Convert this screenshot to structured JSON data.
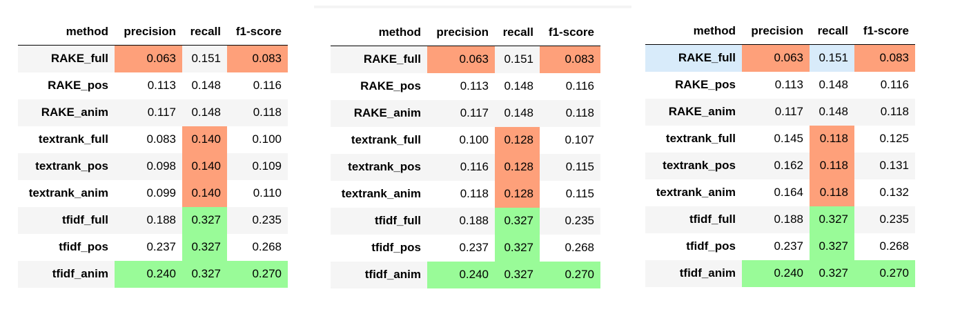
{
  "headers": {
    "method": "method",
    "precision": "precision",
    "recall": "recall",
    "f1": "f1-score"
  },
  "colors": {
    "min_highlight": "#fea07a",
    "max_highlight": "#99fb98",
    "row_selected": "#d8ebfa"
  },
  "tables": [
    {
      "rows": [
        {
          "method": "RAKE_full",
          "precision": "0.063",
          "recall": "0.151",
          "f1": "0.083",
          "hl": {
            "precision": "min",
            "recall": "",
            "f1": "min"
          },
          "selected": false
        },
        {
          "method": "RAKE_pos",
          "precision": "0.113",
          "recall": "0.148",
          "f1": "0.116",
          "hl": {
            "precision": "",
            "recall": "",
            "f1": ""
          },
          "selected": false
        },
        {
          "method": "RAKE_anim",
          "precision": "0.117",
          "recall": "0.148",
          "f1": "0.118",
          "hl": {
            "precision": "",
            "recall": "",
            "f1": ""
          },
          "selected": false
        },
        {
          "method": "textrank_full",
          "precision": "0.083",
          "recall": "0.140",
          "f1": "0.100",
          "hl": {
            "precision": "",
            "recall": "min",
            "f1": ""
          },
          "selected": false
        },
        {
          "method": "textrank_pos",
          "precision": "0.098",
          "recall": "0.140",
          "f1": "0.109",
          "hl": {
            "precision": "",
            "recall": "min",
            "f1": ""
          },
          "selected": false
        },
        {
          "method": "textrank_anim",
          "precision": "0.099",
          "recall": "0.140",
          "f1": "0.110",
          "hl": {
            "precision": "",
            "recall": "min",
            "f1": ""
          },
          "selected": false
        },
        {
          "method": "tfidf_full",
          "precision": "0.188",
          "recall": "0.327",
          "f1": "0.235",
          "hl": {
            "precision": "",
            "recall": "max",
            "f1": ""
          },
          "selected": false
        },
        {
          "method": "tfidf_pos",
          "precision": "0.237",
          "recall": "0.327",
          "f1": "0.268",
          "hl": {
            "precision": "",
            "recall": "max",
            "f1": ""
          },
          "selected": false
        },
        {
          "method": "tfidf_anim",
          "precision": "0.240",
          "recall": "0.327",
          "f1": "0.270",
          "hl": {
            "precision": "max",
            "recall": "max",
            "f1": "max"
          },
          "selected": false
        }
      ]
    },
    {
      "rows": [
        {
          "method": "RAKE_full",
          "precision": "0.063",
          "recall": "0.151",
          "f1": "0.083",
          "hl": {
            "precision": "min",
            "recall": "",
            "f1": "min"
          },
          "selected": false
        },
        {
          "method": "RAKE_pos",
          "precision": "0.113",
          "recall": "0.148",
          "f1": "0.116",
          "hl": {
            "precision": "",
            "recall": "",
            "f1": ""
          },
          "selected": false
        },
        {
          "method": "RAKE_anim",
          "precision": "0.117",
          "recall": "0.148",
          "f1": "0.118",
          "hl": {
            "precision": "",
            "recall": "",
            "f1": ""
          },
          "selected": false
        },
        {
          "method": "textrank_full",
          "precision": "0.100",
          "recall": "0.128",
          "f1": "0.107",
          "hl": {
            "precision": "",
            "recall": "min",
            "f1": ""
          },
          "selected": false
        },
        {
          "method": "textrank_pos",
          "precision": "0.116",
          "recall": "0.128",
          "f1": "0.115",
          "hl": {
            "precision": "",
            "recall": "min",
            "f1": ""
          },
          "selected": false
        },
        {
          "method": "textrank_anim",
          "precision": "0.118",
          "recall": "0.128",
          "f1": "0.115",
          "hl": {
            "precision": "",
            "recall": "min",
            "f1": ""
          },
          "selected": false
        },
        {
          "method": "tfidf_full",
          "precision": "0.188",
          "recall": "0.327",
          "f1": "0.235",
          "hl": {
            "precision": "",
            "recall": "max",
            "f1": ""
          },
          "selected": false
        },
        {
          "method": "tfidf_pos",
          "precision": "0.237",
          "recall": "0.327",
          "f1": "0.268",
          "hl": {
            "precision": "",
            "recall": "max",
            "f1": ""
          },
          "selected": false
        },
        {
          "method": "tfidf_anim",
          "precision": "0.240",
          "recall": "0.327",
          "f1": "0.270",
          "hl": {
            "precision": "max",
            "recall": "max",
            "f1": "max"
          },
          "selected": false
        }
      ]
    },
    {
      "rows": [
        {
          "method": "RAKE_full",
          "precision": "0.063",
          "recall": "0.151",
          "f1": "0.083",
          "hl": {
            "precision": "min",
            "recall": "",
            "f1": "min"
          },
          "selected": true
        },
        {
          "method": "RAKE_pos",
          "precision": "0.113",
          "recall": "0.148",
          "f1": "0.116",
          "hl": {
            "precision": "",
            "recall": "",
            "f1": ""
          },
          "selected": false
        },
        {
          "method": "RAKE_anim",
          "precision": "0.117",
          "recall": "0.148",
          "f1": "0.118",
          "hl": {
            "precision": "",
            "recall": "",
            "f1": ""
          },
          "selected": false
        },
        {
          "method": "textrank_full",
          "precision": "0.145",
          "recall": "0.118",
          "f1": "0.125",
          "hl": {
            "precision": "",
            "recall": "min",
            "f1": ""
          },
          "selected": false
        },
        {
          "method": "textrank_pos",
          "precision": "0.162",
          "recall": "0.118",
          "f1": "0.131",
          "hl": {
            "precision": "",
            "recall": "min",
            "f1": ""
          },
          "selected": false
        },
        {
          "method": "textrank_anim",
          "precision": "0.164",
          "recall": "0.118",
          "f1": "0.132",
          "hl": {
            "precision": "",
            "recall": "min",
            "f1": ""
          },
          "selected": false
        },
        {
          "method": "tfidf_full",
          "precision": "0.188",
          "recall": "0.327",
          "f1": "0.235",
          "hl": {
            "precision": "",
            "recall": "max",
            "f1": ""
          },
          "selected": false
        },
        {
          "method": "tfidf_pos",
          "precision": "0.237",
          "recall": "0.327",
          "f1": "0.268",
          "hl": {
            "precision": "",
            "recall": "max",
            "f1": ""
          },
          "selected": false
        },
        {
          "method": "tfidf_anim",
          "precision": "0.240",
          "recall": "0.327",
          "f1": "0.270",
          "hl": {
            "precision": "max",
            "recall": "max",
            "f1": "max"
          },
          "selected": false
        }
      ]
    }
  ]
}
